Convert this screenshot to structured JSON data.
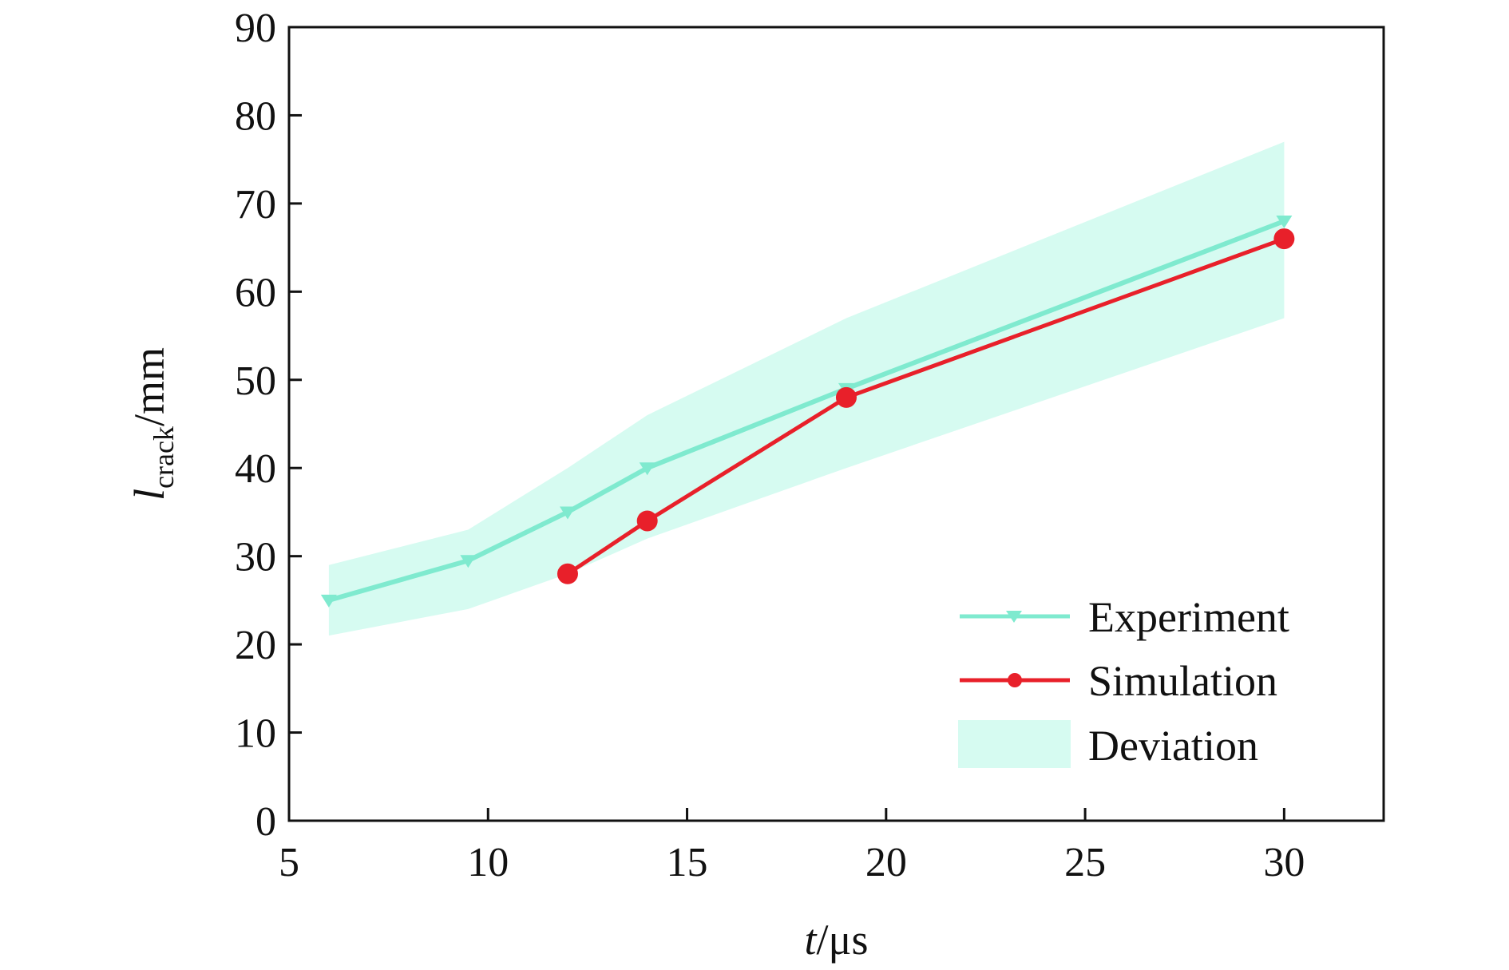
{
  "chart_data": {
    "type": "line",
    "title": "",
    "xlabel": {
      "var": "t",
      "unit": "/μs"
    },
    "ylabel": {
      "var": "l",
      "sub": "crack",
      "unit": "/mm"
    },
    "xlim": [
      5,
      32.5
    ],
    "ylim": [
      0,
      90
    ],
    "x_ticks": [
      5,
      10,
      15,
      20,
      25,
      30
    ],
    "y_ticks": [
      0,
      10,
      20,
      30,
      40,
      50,
      60,
      70,
      80,
      90
    ],
    "grid": false,
    "legend_position": "bottom-right",
    "series": [
      {
        "name": "Experiment",
        "color": "#7feacf",
        "marker": "triangle-down",
        "x": [
          6,
          9.5,
          12,
          14,
          19,
          30
        ],
        "y": [
          25,
          29.5,
          35,
          40,
          49,
          68
        ]
      },
      {
        "name": "Simulation",
        "color": "#e8202a",
        "marker": "circle",
        "x": [
          12,
          14,
          19,
          30
        ],
        "y": [
          28,
          34,
          48,
          66
        ]
      }
    ],
    "band": {
      "name": "Deviation",
      "color": "#d6fbf1",
      "x": [
        6,
        9.5,
        12,
        14,
        19,
        30
      ],
      "lower": [
        21,
        24,
        28,
        32,
        40,
        57
      ],
      "upper": [
        29,
        33,
        40,
        46,
        57,
        77
      ]
    }
  }
}
